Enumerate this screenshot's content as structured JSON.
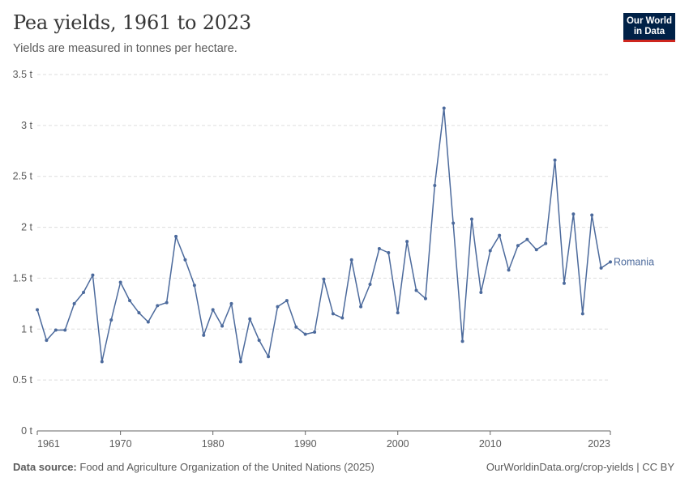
{
  "header": {
    "title": "Pea yields, 1961 to 2023",
    "subtitle": "Yields are measured in tonnes per hectare."
  },
  "logo": {
    "line1": "Our World",
    "line2": "in Data"
  },
  "footer": {
    "source_label": "Data source:",
    "source_text": "Food and Agriculture Organization of the United Nations (2025)",
    "right_text": "OurWorldinData.org/crop-yields | CC BY"
  },
  "colors": {
    "series": "#4c6a9c",
    "grid": "#dddddd",
    "axis": "#666666",
    "text": "#5b5b5b",
    "logo_bg": "#002147",
    "logo_accent": "#ce261e"
  },
  "chart_data": {
    "type": "line",
    "x": [
      1961,
      1962,
      1963,
      1964,
      1965,
      1966,
      1967,
      1968,
      1969,
      1970,
      1971,
      1972,
      1973,
      1974,
      1975,
      1976,
      1977,
      1978,
      1979,
      1980,
      1981,
      1982,
      1983,
      1984,
      1985,
      1986,
      1987,
      1988,
      1989,
      1990,
      1991,
      1992,
      1993,
      1994,
      1995,
      1996,
      1997,
      1998,
      1999,
      2000,
      2001,
      2002,
      2003,
      2004,
      2005,
      2006,
      2007,
      2008,
      2009,
      2010,
      2011,
      2012,
      2013,
      2014,
      2015,
      2016,
      2017,
      2018,
      2019,
      2020,
      2021,
      2022,
      2023
    ],
    "series": [
      {
        "name": "Romania",
        "values": [
          1.19,
          0.89,
          0.99,
          0.99,
          1.25,
          1.36,
          1.53,
          0.68,
          1.09,
          1.46,
          1.28,
          1.16,
          1.07,
          1.23,
          1.26,
          1.91,
          1.68,
          1.43,
          0.94,
          1.19,
          1.03,
          1.25,
          0.68,
          1.1,
          0.89,
          0.73,
          1.22,
          1.28,
          1.02,
          0.95,
          0.97,
          1.49,
          1.15,
          1.11,
          1.68,
          1.22,
          1.44,
          1.79,
          1.75,
          1.16,
          1.86,
          1.38,
          1.3,
          2.41,
          3.17,
          2.04,
          0.88,
          2.08,
          1.36,
          1.77,
          1.92,
          1.58,
          1.82,
          1.88,
          1.78,
          1.84,
          2.66,
          1.45,
          2.13,
          1.15,
          2.12,
          1.6,
          1.66
        ]
      }
    ],
    "ylim": [
      0,
      3.5
    ],
    "yticks": [
      0,
      0.5,
      1,
      1.5,
      2,
      2.5,
      3,
      3.5
    ],
    "ytick_labels": [
      "0 t",
      "0.5 t",
      "1 t",
      "1.5 t",
      "2 t",
      "2.5 t",
      "3 t",
      "3.5 t"
    ],
    "xticks": [
      1961,
      1970,
      1980,
      1990,
      2000,
      2010,
      2023
    ],
    "xtick_labels": [
      "1961",
      "1970",
      "1980",
      "1990",
      "2000",
      "2010",
      "2023"
    ],
    "grid": true,
    "legend": "inline-end-label"
  }
}
